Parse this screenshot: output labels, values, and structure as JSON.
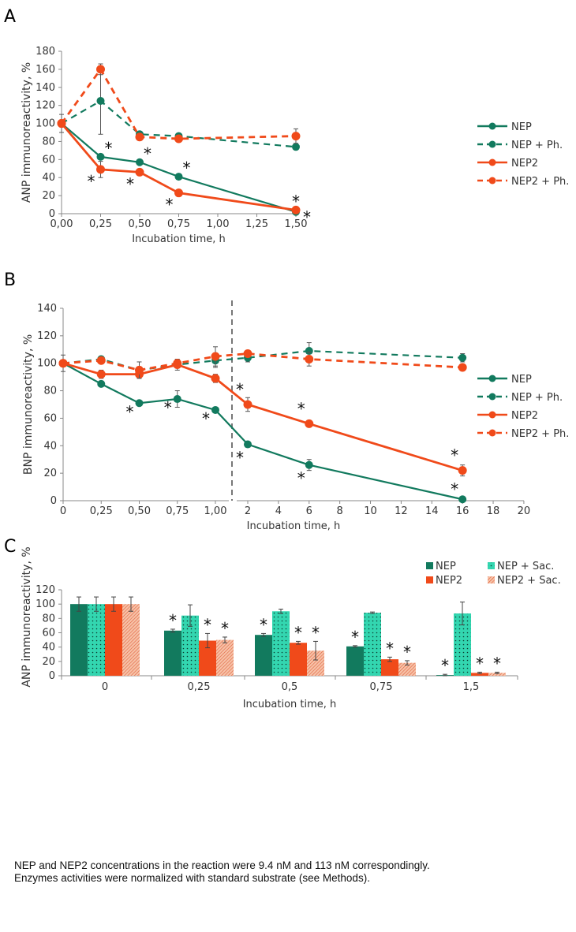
{
  "colors": {
    "nep": "#127a5e",
    "nep2": "#f04a1a",
    "nep_sac": "#33d6b0",
    "nep2_sac": "#f0a080",
    "axis": "#888888",
    "text": "#333333"
  },
  "chart_data": [
    {
      "panel": "A",
      "type": "line",
      "xlabel": "Incubation time, h",
      "ylabel": "ANP immunoreactivity, %",
      "ylim": [
        0,
        180
      ],
      "yticks": [
        "0",
        "20",
        "40",
        "60",
        "80",
        "100",
        "120",
        "140",
        "160",
        "180"
      ],
      "xlim": [
        0,
        1.5
      ],
      "xticks": [
        0,
        0.25,
        0.5,
        0.75,
        1,
        1.25,
        1.5
      ],
      "xtick_labels": [
        "0,00",
        "0,25",
        "0,50",
        "0,75",
        "1,00",
        "1,25",
        "1,50"
      ],
      "x": [
        0,
        0.25,
        0.5,
        0.75,
        1.5
      ],
      "legend": "right",
      "series": [
        {
          "name": "NEP",
          "style": "solid",
          "color": "nep",
          "values": [
            100,
            63,
            57,
            41,
            2
          ],
          "err": [
            0,
            0,
            0,
            0,
            0
          ],
          "sig": [
            false,
            true,
            true,
            true,
            true
          ]
        },
        {
          "name": "NEP + Ph.",
          "style": "dashed",
          "color": "nep",
          "values": [
            100,
            125,
            88,
            86,
            74
          ],
          "err": [
            10,
            37,
            0,
            0,
            0
          ],
          "sig": [
            false,
            false,
            false,
            false,
            false
          ]
        },
        {
          "name": "NEP2",
          "style": "solid",
          "color": "nep2",
          "values": [
            100,
            49,
            46,
            23,
            4
          ],
          "err": [
            0,
            9,
            0,
            0,
            0
          ],
          "sig": [
            false,
            true,
            true,
            true,
            true
          ]
        },
        {
          "name": "NEP2 + Ph.",
          "style": "dashed",
          "color": "nep2",
          "values": [
            100,
            160,
            85,
            83,
            86
          ],
          "err": [
            0,
            6,
            0,
            0,
            8
          ],
          "sig": [
            false,
            false,
            false,
            false,
            false
          ]
        }
      ]
    },
    {
      "panel": "B",
      "type": "line",
      "xlabel": "Incubation time, h",
      "ylabel": "BNP immunoreactivity, %",
      "ylim": [
        0,
        140
      ],
      "yticks": [
        "0",
        "20",
        "40",
        "60",
        "80",
        "100",
        "120",
        "140"
      ],
      "xticks": [
        0,
        0.25,
        0.5,
        0.75,
        1,
        2,
        4,
        6,
        8,
        10,
        12,
        14,
        16,
        18,
        20
      ],
      "xtick_labels": [
        "0",
        "0,25",
        "0,50",
        "0,75",
        "1,00",
        "2",
        "4",
        "6",
        "8",
        "10",
        "12",
        "14",
        "16",
        "18",
        "20"
      ],
      "axis_break_after": 1,
      "x": [
        0,
        0.25,
        0.5,
        0.75,
        1,
        2,
        6,
        16
      ],
      "legend": "right",
      "series": [
        {
          "name": "NEP",
          "style": "solid",
          "color": "nep",
          "values": [
            100,
            85,
            71,
            74,
            66,
            41,
            26,
            1
          ],
          "err": [
            0,
            2,
            1,
            6,
            1,
            2,
            4,
            0
          ],
          "sig": [
            false,
            false,
            true,
            true,
            true,
            true,
            true,
            true
          ]
        },
        {
          "name": "NEP + Ph.",
          "style": "dashed",
          "color": "nep",
          "values": [
            100,
            103,
            95,
            99,
            102,
            104,
            109,
            104
          ],
          "err": [
            6,
            2,
            0,
            4,
            5,
            3,
            6,
            3
          ],
          "sig": [
            false,
            false,
            false,
            false,
            false,
            false,
            false,
            false
          ]
        },
        {
          "name": "NEP2",
          "style": "solid",
          "color": "nep2",
          "values": [
            100,
            92,
            92,
            99,
            89,
            70,
            56,
            22
          ],
          "err": [
            0,
            3,
            3,
            0,
            3,
            5,
            0,
            4
          ],
          "sig": [
            false,
            false,
            false,
            false,
            false,
            true,
            true,
            true
          ]
        },
        {
          "name": "NEP2 + Ph.",
          "style": "dashed",
          "color": "nep2",
          "values": [
            100,
            102,
            95,
            100,
            105,
            107,
            103,
            97
          ],
          "err": [
            0,
            0,
            6,
            0,
            7,
            0,
            5,
            2
          ],
          "sig": [
            false,
            false,
            false,
            false,
            false,
            false,
            false,
            false
          ]
        }
      ]
    },
    {
      "panel": "C",
      "type": "bar",
      "xlabel": "Incubation time, h",
      "ylabel": "ANP immunoreactivity, %",
      "ylim": [
        0,
        120
      ],
      "yticks": [
        "0",
        "20",
        "40",
        "60",
        "80",
        "100",
        "120"
      ],
      "categories": [
        "0",
        "0,25",
        "0,5",
        "0,75",
        "1,5"
      ],
      "legend": "top-right",
      "series": [
        {
          "name": "NEP",
          "fill": "nep",
          "values": [
            100,
            63,
            57,
            41,
            1
          ],
          "err": [
            10,
            2,
            2,
            1,
            1
          ],
          "sig": [
            false,
            true,
            true,
            true,
            true
          ]
        },
        {
          "name": "NEP + Sac.",
          "fill": "nep_sac",
          "values": [
            100,
            84,
            90,
            88,
            87
          ],
          "err": [
            10,
            15,
            3,
            1,
            16
          ],
          "sig": [
            false,
            false,
            false,
            false,
            false
          ]
        },
        {
          "name": "NEP2",
          "fill": "nep2",
          "values": [
            100,
            49,
            46,
            23,
            4
          ],
          "err": [
            10,
            10,
            2,
            3,
            1
          ],
          "sig": [
            false,
            true,
            true,
            true,
            true
          ]
        },
        {
          "name": "NEP2 + Sac.",
          "fill": "nep2_sac",
          "values": [
            100,
            50,
            35,
            18,
            4
          ],
          "err": [
            10,
            4,
            13,
            3,
            1
          ],
          "sig": [
            false,
            true,
            true,
            true,
            true
          ]
        }
      ]
    }
  ],
  "caption": {
    "line1": "NEP and NEP2 concentrations in the reaction were 9.4 nM and 113 nM correspondingly.",
    "line2": "Enzymes activities were normalized with standard substrate (see Methods)."
  },
  "significance_mark": "*"
}
